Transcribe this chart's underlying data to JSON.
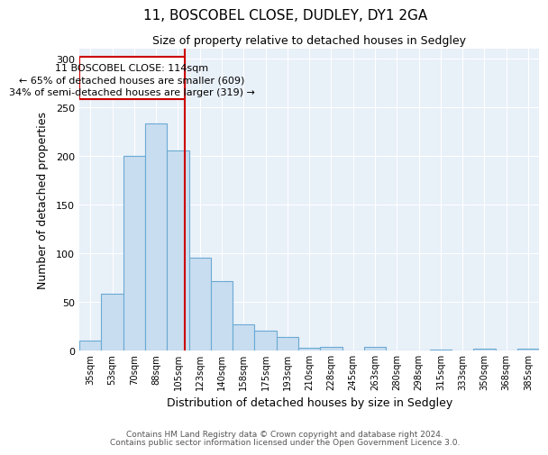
{
  "title1": "11, BOSCOBEL CLOSE, DUDLEY, DY1 2GA",
  "title2": "Size of property relative to detached houses in Sedgley",
  "xlabel": "Distribution of detached houses by size in Sedgley",
  "ylabel": "Number of detached properties",
  "categories": [
    "35sqm",
    "53sqm",
    "70sqm",
    "88sqm",
    "105sqm",
    "123sqm",
    "140sqm",
    "158sqm",
    "175sqm",
    "193sqm",
    "210sqm",
    "228sqm",
    "245sqm",
    "263sqm",
    "280sqm",
    "298sqm",
    "315sqm",
    "333sqm",
    "350sqm",
    "368sqm",
    "385sqm"
  ],
  "values": [
    10,
    58,
    200,
    233,
    205,
    95,
    71,
    27,
    20,
    14,
    3,
    4,
    0,
    4,
    0,
    0,
    1,
    0,
    2,
    0,
    2
  ],
  "bar_color": "#c9ddf0",
  "bar_edge_color": "#6aaad4",
  "annotation_line1": "11 BOSCOBEL CLOSE: 114sqm",
  "annotation_line2": "← 65% of detached houses are smaller (609)",
  "annotation_line3": "34% of semi-detached houses are larger (319) →",
  "red_line_color": "#cc0000",
  "ylim": [
    0,
    310
  ],
  "yticks": [
    0,
    50,
    100,
    150,
    200,
    250,
    300
  ],
  "background_color": "#e8f0f8",
  "grid_color": "#ffffff",
  "footer1": "Contains HM Land Registry data © Crown copyright and database right 2024.",
  "footer2": "Contains public sector information licensed under the Open Government Licence 3.0."
}
